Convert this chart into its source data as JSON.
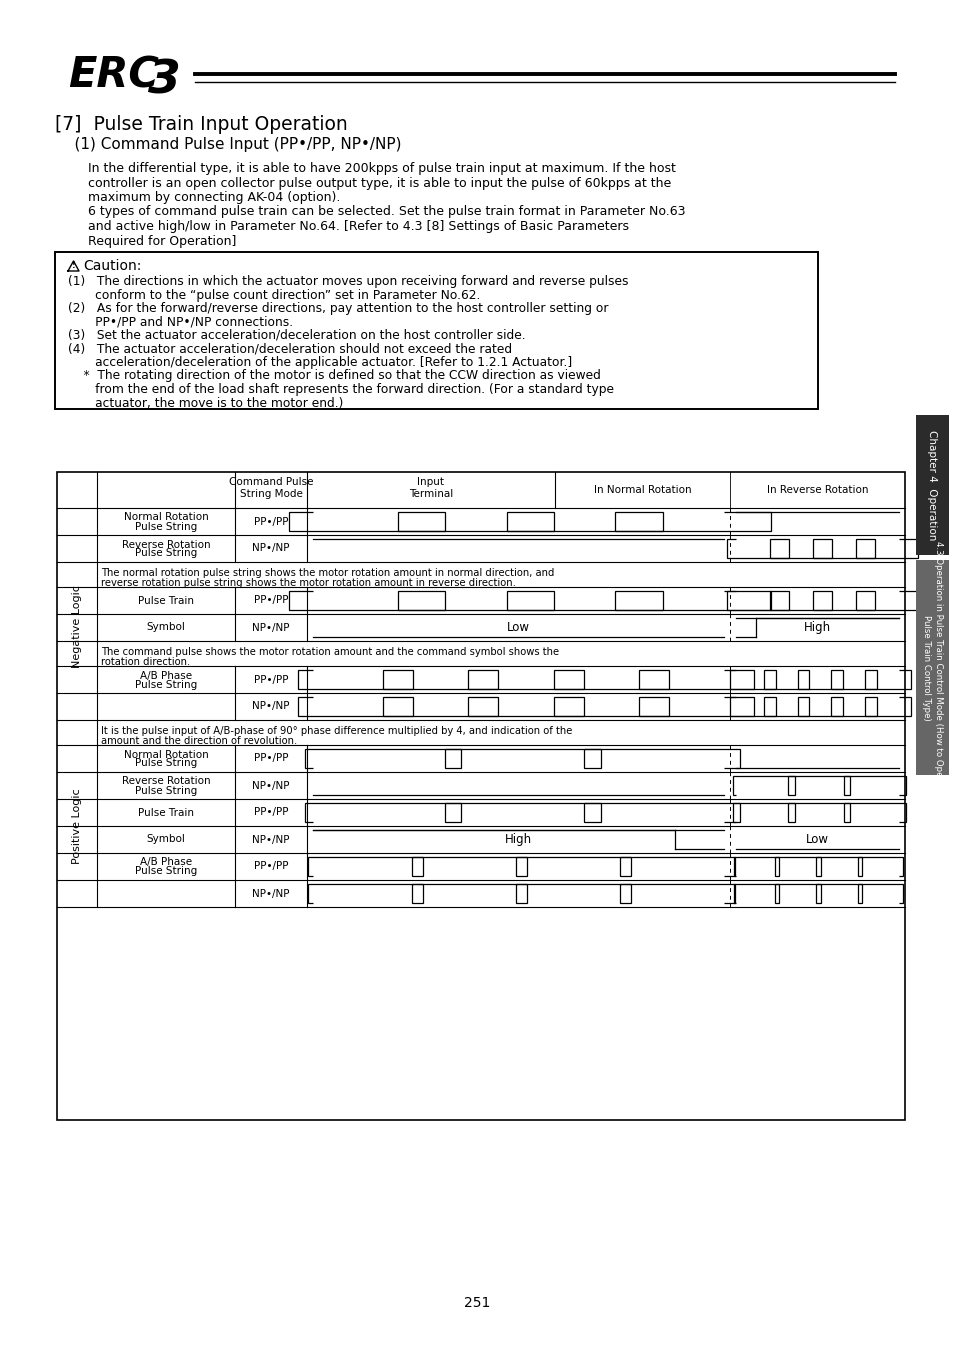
{
  "title": "[7]  Pulse Train Input Operation",
  "subtitle": "    (1) Command Pulse Input (PP•/PP, NP•/NP)",
  "body_text": [
    "In the differential type, it is able to have 200kpps of pulse train input at maximum. If the host",
    "controller is an open collector pulse output type, it is able to input the pulse of 60kpps at the",
    "maximum by connecting AK-04 (option).",
    "6 types of command pulse train can be selected. Set the pulse train format in Parameter No.63",
    "and active high/low in Parameter No.64. [Refer to 4.3 [8] Settings of Basic Parameters",
    "Required for Operation]"
  ],
  "caution_items": [
    "(1)   The directions in which the actuator moves upon receiving forward and reverse pulses",
    "       conform to the “pulse count direction” set in Parameter No.62.",
    "(2)   As for the forward/reverse directions, pay attention to the host controller setting or",
    "       PP•/PP and NP•/NP connections.",
    "(3)   Set the actuator acceleration/deceleration on the host controller side.",
    "(4)   The actuator acceleration/deceleration should not exceed the rated",
    "       acceleration/deceleration of the applicable actuator. [Refer to 1.2.1 Actuator.]",
    "    *  The rotating direction of the motor is defined so that the CCW direction as viewed",
    "       from the end of the load shaft represents the forward direction. (For a standard type",
    "       actuator, the move is to the motor end.)"
  ],
  "note1": [
    "The normal rotation pulse string shows the motor rotation amount in normal direction, and",
    "reverse rotation pulse string shows the motor rotation amount in reverse direction."
  ],
  "note2": [
    "The command pulse shows the motor rotation amount and the command symbol shows the",
    "rotation direction."
  ],
  "note3": [
    "It is the pulse input of A/B-phase of 90° phase difference multiplied by 4, and indication of the",
    "amount and the direction of revolution."
  ],
  "page_number": "251"
}
